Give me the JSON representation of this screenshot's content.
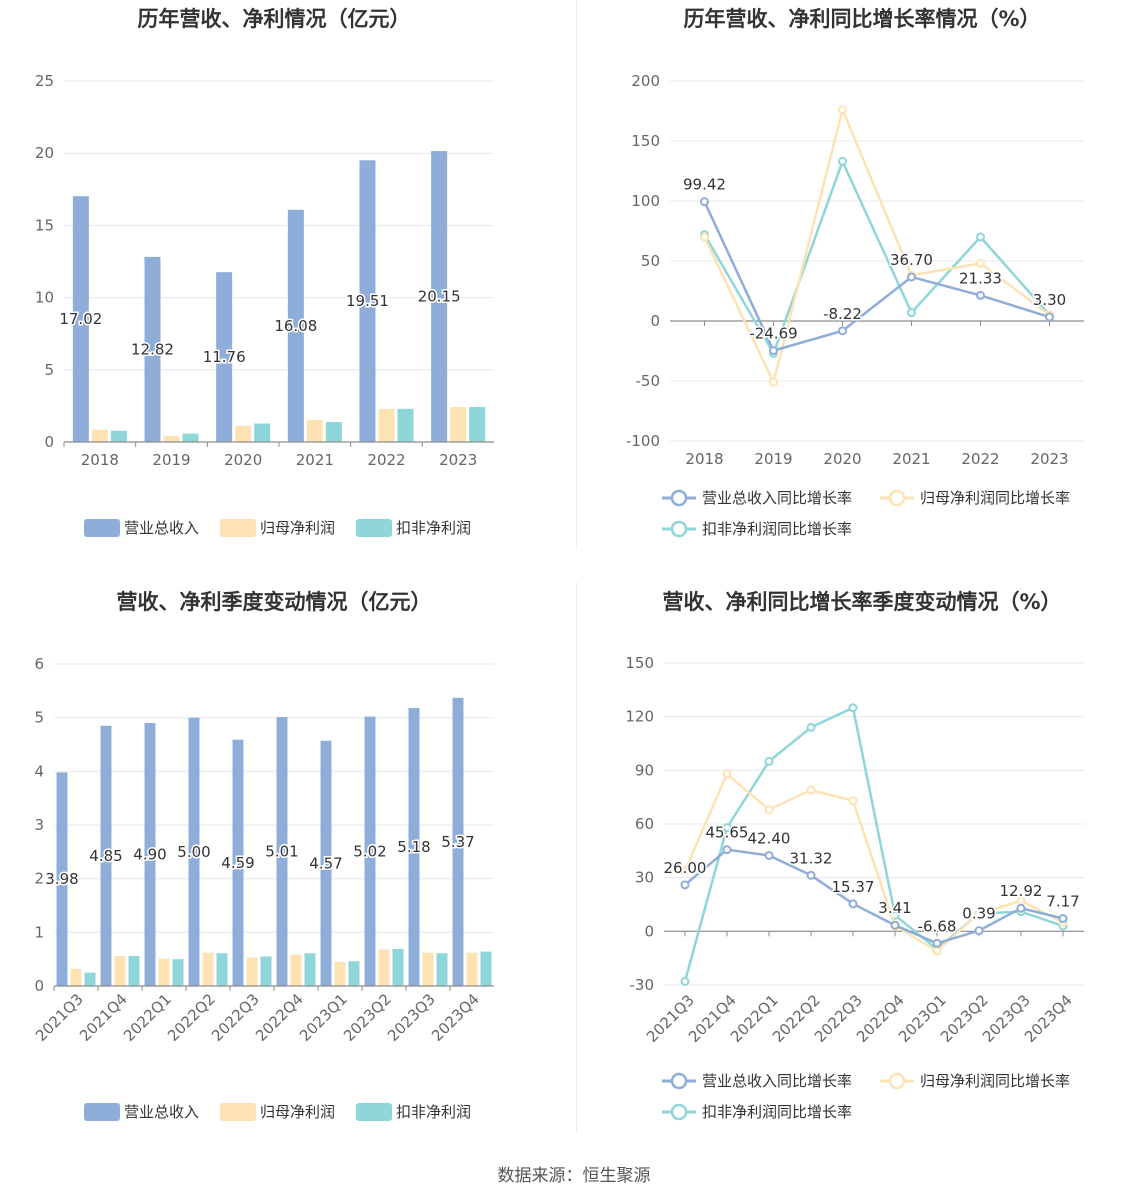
{
  "colors": {
    "revenue": "#8eadd9",
    "netprofit": "#fde3b3",
    "deducted": "#8ed6d8",
    "grid": "#e6e9f0",
    "axis": "#8c8c8c"
  },
  "source": "数据来源：恒生聚源",
  "chart_data": [
    {
      "id": "annual_values",
      "type": "bar",
      "title": "历年营收、净利情况（亿元）",
      "categories": [
        "2018",
        "2019",
        "2020",
        "2021",
        "2022",
        "2023"
      ],
      "ylim": [
        0,
        25
      ],
      "yticks": [
        "0",
        "5",
        "10",
        "15",
        "20",
        "25"
      ],
      "series": [
        {
          "name": "营业总收入",
          "values": [
            17.02,
            12.82,
            11.76,
            16.08,
            19.51,
            20.15
          ],
          "labels": [
            "17.02",
            "12.82",
            "11.76",
            "16.08",
            "19.51",
            "20.15"
          ]
        },
        {
          "name": "归母净利润",
          "values": [
            0.85,
            0.42,
            1.12,
            1.52,
            2.28,
            2.42
          ]
        },
        {
          "name": "扣非净利润",
          "values": [
            0.78,
            0.58,
            1.28,
            1.38,
            2.3,
            2.42
          ]
        }
      ]
    },
    {
      "id": "annual_growth",
      "type": "line",
      "title": "历年营收、净利同比增长率情况（%）",
      "categories": [
        "2018",
        "2019",
        "2020",
        "2021",
        "2022",
        "2023"
      ],
      "ylim": [
        -100,
        200
      ],
      "yticks": [
        "-100",
        "-50",
        "0",
        "50",
        "100",
        "150",
        "200"
      ],
      "series": [
        {
          "name": "营业总收入同比增长率",
          "values": [
            99.42,
            -24.69,
            -8.22,
            36.7,
            21.33,
            3.3
          ],
          "labels": [
            "99.42",
            "-24.69",
            "-8.22",
            "36.70",
            "21.33",
            "3.30"
          ]
        },
        {
          "name": "归母净利润同比增长率",
          "values": [
            70,
            -51,
            176,
            38,
            48,
            5
          ]
        },
        {
          "name": "扣非净利润同比增长率",
          "values": [
            72,
            -27,
            133,
            7,
            70,
            5
          ]
        }
      ]
    },
    {
      "id": "quarterly_values",
      "type": "bar",
      "title": "营收、净利季度变动情况（亿元）",
      "categories": [
        "2021Q3",
        "2021Q4",
        "2022Q1",
        "2022Q2",
        "2022Q3",
        "2022Q4",
        "2023Q1",
        "2023Q2",
        "2023Q3",
        "2023Q4"
      ],
      "ylim": [
        0,
        6
      ],
      "yticks": [
        "0",
        "1",
        "2",
        "3",
        "4",
        "5",
        "6"
      ],
      "series": [
        {
          "name": "营业总收入",
          "values": [
            3.98,
            4.85,
            4.9,
            5.0,
            4.59,
            5.01,
            4.57,
            5.02,
            5.18,
            5.37
          ],
          "labels": [
            "3.98",
            "4.85",
            "4.90",
            "5.00",
            "4.59",
            "5.01",
            "4.57",
            "5.02",
            "5.18",
            "5.37"
          ]
        },
        {
          "name": "归母净利润",
          "values": [
            0.32,
            0.56,
            0.51,
            0.62,
            0.53,
            0.59,
            0.45,
            0.68,
            0.62,
            0.62
          ]
        },
        {
          "name": "扣非净利润",
          "values": [
            0.25,
            0.56,
            0.5,
            0.61,
            0.55,
            0.61,
            0.46,
            0.69,
            0.61,
            0.64
          ]
        }
      ]
    },
    {
      "id": "quarterly_growth",
      "type": "line",
      "title": "营收、净利同比增长率季度变动情况（%）",
      "categories": [
        "2021Q3",
        "2021Q4",
        "2022Q1",
        "2022Q2",
        "2022Q3",
        "2022Q4",
        "2023Q1",
        "2023Q2",
        "2023Q3",
        "2023Q4"
      ],
      "ylim": [
        -30,
        150
      ],
      "yticks": [
        "-30",
        "0",
        "30",
        "60",
        "90",
        "120",
        "150"
      ],
      "series": [
        {
          "name": "营业总收入同比增长率",
          "values": [
            26.0,
            45.65,
            42.4,
            31.32,
            15.37,
            3.41,
            -6.68,
            0.39,
            12.92,
            7.17
          ],
          "labels": [
            "26.00",
            "45.65",
            "42.40",
            "31.32",
            "15.37",
            "3.41",
            "-6.68",
            "0.39",
            "12.92",
            "7.17"
          ]
        },
        {
          "name": "归母净利润同比增长率",
          "values": [
            34,
            88,
            68,
            79,
            73,
            3,
            -11,
            10,
            17,
            5
          ]
        },
        {
          "name": "扣非净利润同比增长率",
          "values": [
            -28,
            58,
            95,
            114,
            125,
            9,
            -10,
            10,
            11,
            3
          ]
        }
      ]
    }
  ]
}
